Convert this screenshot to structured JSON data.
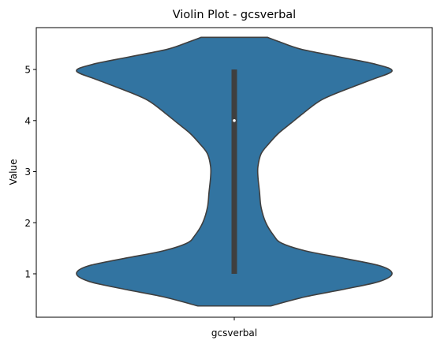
{
  "chart_data": {
    "type": "violin",
    "title": "Violin Plot - gcsverbal",
    "xlabel": "",
    "ylabel": "Value",
    "categories": [
      "gcsverbal"
    ],
    "ylim": [
      0.15,
      5.82
    ],
    "yticks": [
      1,
      2,
      3,
      4,
      5
    ],
    "grid": false,
    "color": "#3274a1",
    "edge_color": "#3f3f3f",
    "violin": {
      "extent": [
        0.37,
        5.63
      ],
      "density_profile": [
        [
          0.37,
          0.23
        ],
        [
          0.55,
          0.45
        ],
        [
          0.7,
          0.7
        ],
        [
          0.85,
          0.92
        ],
        [
          1.0,
          1.0
        ],
        [
          1.15,
          0.93
        ],
        [
          1.3,
          0.7
        ],
        [
          1.45,
          0.45
        ],
        [
          1.6,
          0.3
        ],
        [
          1.75,
          0.25
        ],
        [
          2.0,
          0.2
        ],
        [
          2.3,
          0.17
        ],
        [
          2.6,
          0.16
        ],
        [
          2.9,
          0.15
        ],
        [
          3.1,
          0.15
        ],
        [
          3.35,
          0.17
        ],
        [
          3.55,
          0.22
        ],
        [
          3.75,
          0.28
        ],
        [
          3.95,
          0.36
        ],
        [
          4.15,
          0.44
        ],
        [
          4.4,
          0.55
        ],
        [
          4.6,
          0.7
        ],
        [
          4.8,
          0.87
        ],
        [
          4.97,
          1.0
        ],
        [
          5.1,
          0.9
        ],
        [
          5.25,
          0.66
        ],
        [
          5.4,
          0.42
        ],
        [
          5.55,
          0.28
        ],
        [
          5.63,
          0.21
        ]
      ],
      "quartiles": {
        "q1": 1.0,
        "median": 4.0,
        "q3": 5.0
      },
      "whiskers": [
        1.0,
        5.0
      ]
    }
  }
}
